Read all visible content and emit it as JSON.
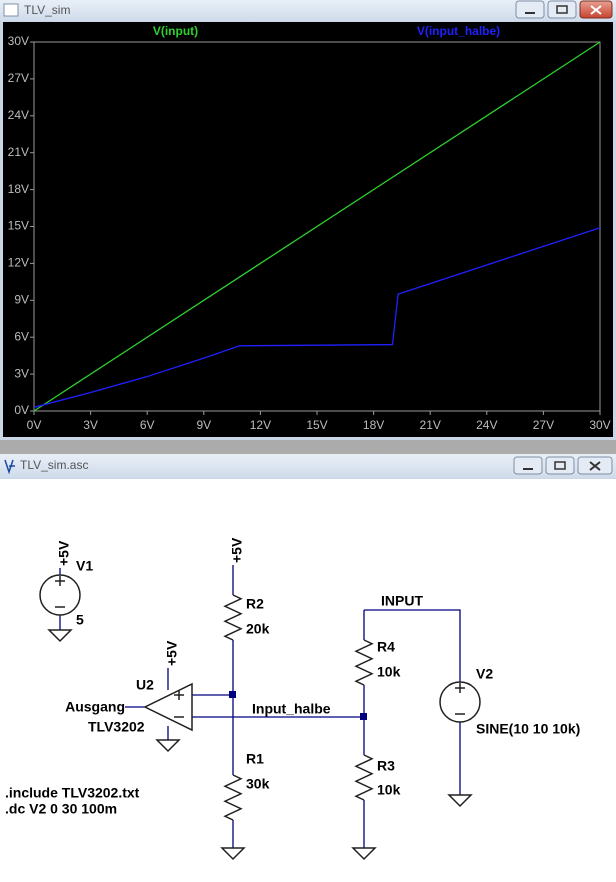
{
  "window_title": "TLV_sim",
  "chart_data": {
    "type": "line",
    "series": [
      {
        "name": "V(input)",
        "color": "#2ed02e",
        "x": [
          0,
          30
        ],
        "values": [
          0,
          30
        ]
      },
      {
        "name": "V(input_halbe)",
        "color": "#2020ff",
        "x": [
          0,
          3,
          6,
          9,
          10.9,
          19,
          19.3,
          30
        ],
        "values": [
          0.3,
          1.5,
          2.8,
          4.3,
          5.3,
          5.4,
          9.5,
          14.9
        ]
      }
    ],
    "xlim": [
      0,
      30
    ],
    "ylim": [
      0,
      30
    ],
    "xticks": [
      {
        "value": 0,
        "label": "0V"
      },
      {
        "value": 3,
        "label": "3V"
      },
      {
        "value": 6,
        "label": "6V"
      },
      {
        "value": 9,
        "label": "9V"
      },
      {
        "value": 12,
        "label": "12V"
      },
      {
        "value": 15,
        "label": "15V"
      },
      {
        "value": 18,
        "label": "18V"
      },
      {
        "value": 21,
        "label": "21V"
      },
      {
        "value": 24,
        "label": "24V"
      },
      {
        "value": 27,
        "label": "27V"
      },
      {
        "value": 30,
        "label": "30V"
      }
    ],
    "yticks": [
      {
        "value": 0,
        "label": "0V"
      },
      {
        "value": 3,
        "label": "3V"
      },
      {
        "value": 6,
        "label": "6V"
      },
      {
        "value": 9,
        "label": "9V"
      },
      {
        "value": 12,
        "label": "12V"
      },
      {
        "value": 15,
        "label": "15V"
      },
      {
        "value": 18,
        "label": "18V"
      },
      {
        "value": 21,
        "label": "21V"
      },
      {
        "value": 24,
        "label": "24V"
      },
      {
        "value": 27,
        "label": "27V"
      },
      {
        "value": 30,
        "label": "30V"
      }
    ],
    "grid": false
  },
  "schematic": {
    "window_title": "TLV_sim.asc",
    "labels": [
      "+5V",
      "V1",
      "5",
      "+5V",
      "R2",
      "20k",
      "+5V",
      "U2",
      "Ausgang",
      "TLV3202",
      "INPUT",
      "R4",
      "10k",
      "V2",
      "SINE(10 10 10k)",
      "Input_halbe",
      "R3",
      "10k",
      "R1",
      "30k",
      ".include TLV3202.txt",
      ".dc V2 0 30 100m"
    ]
  }
}
